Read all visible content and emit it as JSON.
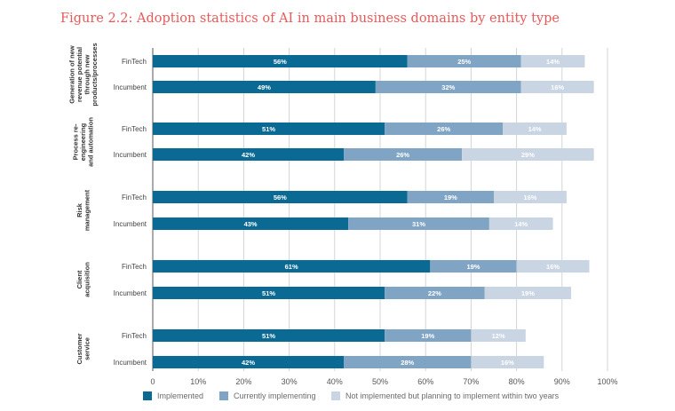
{
  "title": "Figure 2.2: Adoption statistics of AI in main business domains by entity type",
  "chart_data": {
    "type": "bar",
    "orientation": "horizontal",
    "stacked": true,
    "title": "Figure 2.2: Adoption statistics of AI in main business domains by entity type",
    "xlim": [
      0,
      100
    ],
    "xticks": [
      "0",
      "10%",
      "20%",
      "30%",
      "40%",
      "50%",
      "60%",
      "70%",
      "80%",
      "90%",
      "100%"
    ],
    "grid": true,
    "legend_position": "bottom",
    "series": [
      {
        "name": "Implemented",
        "color": "#0b6a94"
      },
      {
        "name": "Currently implementing",
        "color": "#7fa4c4"
      },
      {
        "name": "Not implemented but planning to implement within two years",
        "color": "#c9d5e3"
      }
    ],
    "groups": [
      {
        "label": [
          "Generation of new",
          "revenue potential",
          "through new",
          "products/processes"
        ],
        "bars": [
          {
            "entity": "FinTech",
            "values": [
              56,
              25,
              14
            ]
          },
          {
            "entity": "Incumbent",
            "values": [
              49,
              32,
              16
            ]
          }
        ]
      },
      {
        "label": [
          "Process re-",
          "engineering",
          "and automation"
        ],
        "bars": [
          {
            "entity": "FinTech",
            "values": [
              51,
              26,
              14
            ]
          },
          {
            "entity": "Incumbent",
            "values": [
              42,
              26,
              29
            ]
          }
        ]
      },
      {
        "label": [
          "Risk",
          "management"
        ],
        "bars": [
          {
            "entity": "FinTech",
            "values": [
              56,
              19,
              16
            ]
          },
          {
            "entity": "Incumbent",
            "values": [
              43,
              31,
              14
            ]
          }
        ]
      },
      {
        "label": [
          "Client",
          "acquisition"
        ],
        "bars": [
          {
            "entity": "FinTech",
            "values": [
              61,
              19,
              16
            ]
          },
          {
            "entity": "Incumbent",
            "values": [
              51,
              22,
              19
            ]
          }
        ]
      },
      {
        "label": [
          "Customer",
          "service"
        ],
        "bars": [
          {
            "entity": "FinTech",
            "values": [
              51,
              19,
              12
            ]
          },
          {
            "entity": "Incumbent",
            "values": [
              42,
              28,
              16
            ]
          }
        ]
      }
    ]
  }
}
